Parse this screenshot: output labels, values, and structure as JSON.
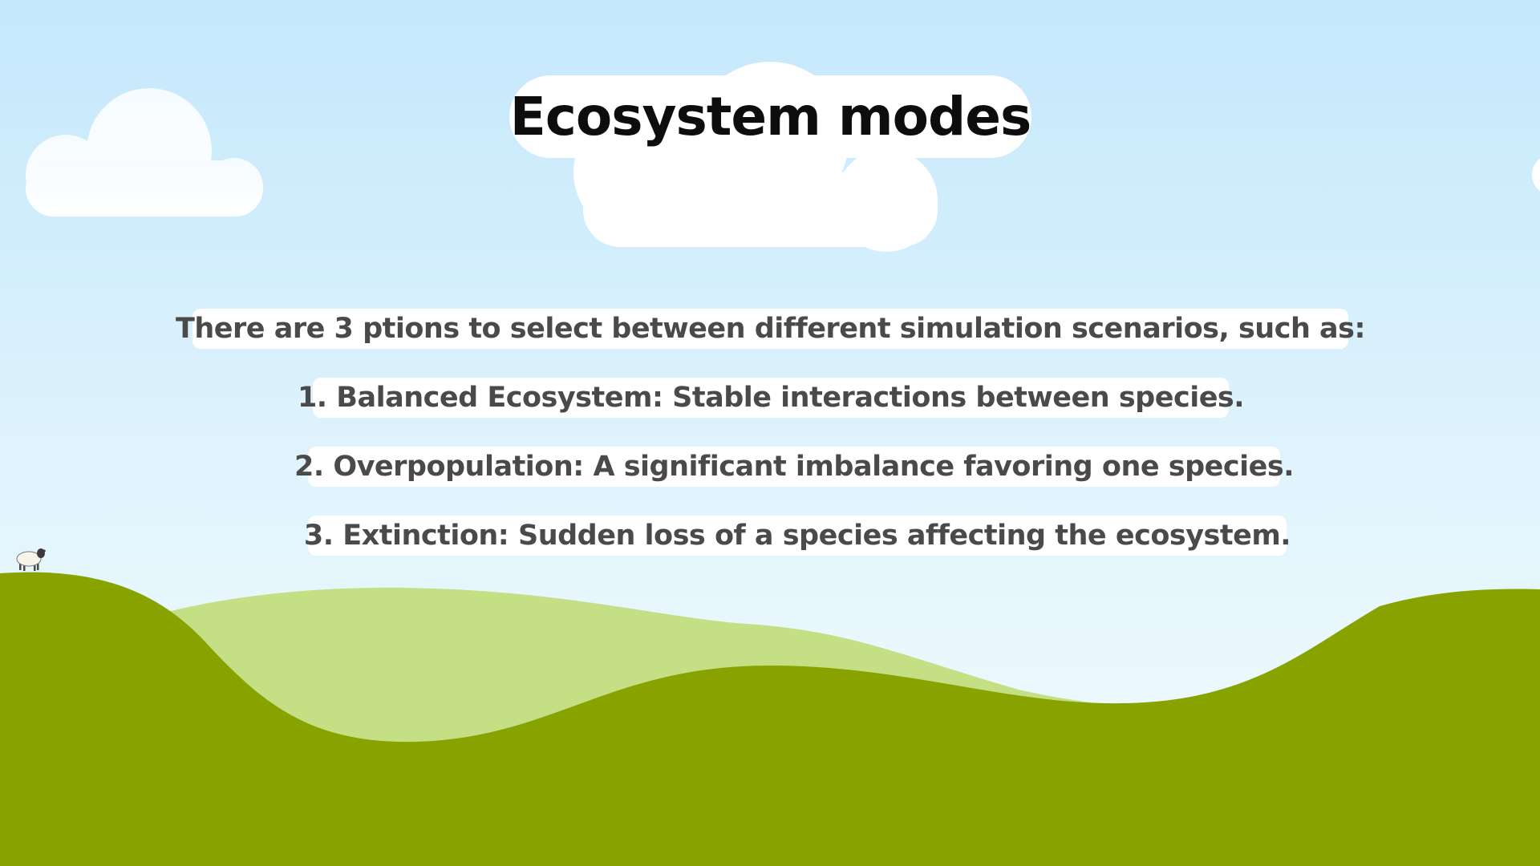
{
  "slide": {
    "title": "Ecosystem modes",
    "intro": "There are 3 ptions to select between different simulation scenarios, such as:",
    "items": [
      "1.  Balanced Ecosystem: Stable interactions between species.",
      "2. Overpopulation: A significant imbalance favoring one species.",
      "3. Extinction: Sudden loss of a species affecting the ecosystem."
    ]
  },
  "colors": {
    "sky_top": "#c4e8fc",
    "sky_bottom": "#f0fafe",
    "hill_light": "#c5df85",
    "hill_dark": "#88a300",
    "cloud": "#ffffff",
    "text_title": "#0d0d0d",
    "text_body": "#4a4a4a"
  },
  "icons": {
    "sheep": "sheep-icon"
  }
}
